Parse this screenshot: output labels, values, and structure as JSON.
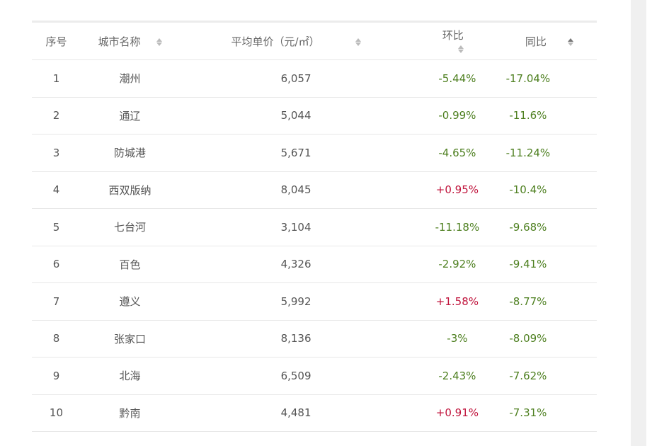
{
  "header": {
    "index": "序号",
    "city": "城市名称",
    "price": "平均单价（元/㎡）",
    "mom": "环比",
    "yoy": "同比"
  },
  "colors": {
    "negative": "#4d7f1f",
    "positive": "#c0143c"
  },
  "rows": [
    {
      "index": "1",
      "city": "潮州",
      "price": "6,057",
      "mom": "-5.44%",
      "yoy": "-17.04%"
    },
    {
      "index": "2",
      "city": "通辽",
      "price": "5,044",
      "mom": "-0.99%",
      "yoy": "-11.6%"
    },
    {
      "index": "3",
      "city": "防城港",
      "price": "5,671",
      "mom": "-4.65%",
      "yoy": "-11.24%"
    },
    {
      "index": "4",
      "city": "西双版纳",
      "price": "8,045",
      "mom": "+0.95%",
      "yoy": "-10.4%"
    },
    {
      "index": "5",
      "city": "七台河",
      "price": "3,104",
      "mom": "-11.18%",
      "yoy": "-9.68%"
    },
    {
      "index": "6",
      "city": "百色",
      "price": "4,326",
      "mom": "-2.92%",
      "yoy": "-9.41%"
    },
    {
      "index": "7",
      "city": "遵义",
      "price": "5,992",
      "mom": "+1.58%",
      "yoy": "-8.77%"
    },
    {
      "index": "8",
      "city": "张家口",
      "price": "8,136",
      "mom": "-3%",
      "yoy": "-8.09%"
    },
    {
      "index": "9",
      "city": "北海",
      "price": "6,509",
      "mom": "-2.43%",
      "yoy": "-7.62%"
    },
    {
      "index": "10",
      "city": "黔南",
      "price": "4,481",
      "mom": "+0.91%",
      "yoy": "-7.31%"
    }
  ]
}
